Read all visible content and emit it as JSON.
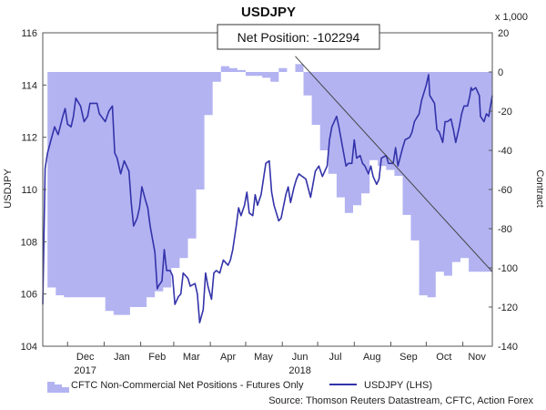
{
  "chart_data": {
    "type": "line",
    "title": "USDJPY",
    "ylabel": "USDJPY",
    "y2label": "Contract",
    "y2_units": "x 1,000",
    "ylim": [
      104,
      116
    ],
    "y2lim": [
      -140,
      20
    ],
    "y_ticks": [
      "104",
      "106",
      "108",
      "110",
      "112",
      "114",
      "116"
    ],
    "y2_ticks": [
      "-140",
      "-120",
      "-100",
      "-80",
      "-60",
      "-40",
      "-20",
      "0",
      "20"
    ],
    "x_ticks": [
      "Dec",
      "Jan",
      "Feb",
      "Mar",
      "Apr",
      "May",
      "Jun",
      "Jul",
      "Aug",
      "Sep",
      "Oct",
      "Nov"
    ],
    "x_year_labels": [
      "2017",
      "2018"
    ],
    "grid": false,
    "legend_position": "bottom",
    "annotation": "Net Position: -102294",
    "source": "Source: Thomson Reuters Datastream, CFTC, Action Forex",
    "series": [
      {
        "name": "CFTC Non-Commercial Net Positions - Futures Only",
        "type": "area",
        "axis": "right",
        "color": "#9999ee",
        "points": [
          [
            "2017-11-14",
            -110
          ],
          [
            "2017-11-21",
            -114
          ],
          [
            "2017-11-28",
            -115
          ],
          [
            "2017-12-05",
            -115
          ],
          [
            "2017-12-12",
            -115
          ],
          [
            "2017-12-19",
            -115
          ],
          [
            "2017-12-26",
            -115
          ],
          [
            "2018-01-02",
            -122
          ],
          [
            "2018-01-09",
            -124
          ],
          [
            "2018-01-16",
            -124
          ],
          [
            "2018-01-23",
            -120
          ],
          [
            "2018-01-30",
            -120
          ],
          [
            "2018-02-06",
            -115
          ],
          [
            "2018-02-13",
            -112
          ],
          [
            "2018-02-20",
            -110
          ],
          [
            "2018-02-27",
            -100
          ],
          [
            "2018-03-06",
            -95
          ],
          [
            "2018-03-13",
            -85
          ],
          [
            "2018-03-20",
            -60
          ],
          [
            "2018-03-27",
            -22
          ],
          [
            "2018-04-03",
            -5
          ],
          [
            "2018-04-10",
            3
          ],
          [
            "2018-04-17",
            2
          ],
          [
            "2018-04-24",
            1
          ],
          [
            "2018-05-01",
            -2
          ],
          [
            "2018-05-08",
            -2
          ],
          [
            "2018-05-15",
            -3
          ],
          [
            "2018-05-22",
            -5
          ],
          [
            "2018-05-29",
            2
          ],
          [
            "2018-06-05",
            0
          ],
          [
            "2018-06-12",
            4
          ],
          [
            "2018-06-19",
            -12
          ],
          [
            "2018-06-26",
            -27
          ],
          [
            "2018-07-03",
            -40
          ],
          [
            "2018-07-10",
            -52
          ],
          [
            "2018-07-17",
            -64
          ],
          [
            "2018-07-24",
            -72
          ],
          [
            "2018-07-31",
            -68
          ],
          [
            "2018-08-07",
            -62
          ],
          [
            "2018-08-14",
            -45
          ],
          [
            "2018-08-21",
            -48
          ],
          [
            "2018-08-28",
            -50
          ],
          [
            "2018-09-04",
            -53
          ],
          [
            "2018-09-11",
            -73
          ],
          [
            "2018-09-18",
            -86
          ],
          [
            "2018-09-25",
            -114
          ],
          [
            "2018-10-02",
            -115
          ],
          [
            "2018-10-09",
            -102
          ],
          [
            "2018-10-16",
            -104
          ],
          [
            "2018-10-23",
            -97
          ],
          [
            "2018-10-30",
            -95
          ],
          [
            "2018-11-06",
            -102
          ],
          [
            "2018-11-13",
            -102
          ]
        ]
      },
      {
        "name": "USDJPY (LHS)",
        "type": "line",
        "axis": "left",
        "color": "#3333aa",
        "points": [
          [
            "2017-11-10",
            105.6
          ],
          [
            "2017-11-12",
            110.8
          ],
          [
            "2017-11-14",
            111.4
          ],
          [
            "2017-11-17",
            111.9
          ],
          [
            "2017-11-20",
            112.4
          ],
          [
            "2017-11-23",
            112.1
          ],
          [
            "2017-11-27",
            112.8
          ],
          [
            "2017-11-29",
            113.1
          ],
          [
            "2017-12-01",
            112.5
          ],
          [
            "2017-12-04",
            112.4
          ],
          [
            "2017-12-06",
            112.8
          ],
          [
            "2017-12-08",
            113.5
          ],
          [
            "2017-12-12",
            113.2
          ],
          [
            "2017-12-15",
            112.6
          ],
          [
            "2017-12-18",
            112.8
          ],
          [
            "2017-12-20",
            113.3
          ],
          [
            "2017-12-26",
            113.3
          ],
          [
            "2017-12-28",
            112.9
          ],
          [
            "2018-01-02",
            112.6
          ],
          [
            "2018-01-05",
            113.0
          ],
          [
            "2018-01-08",
            113.2
          ],
          [
            "2018-01-10",
            111.4
          ],
          [
            "2018-01-12",
            111.2
          ],
          [
            "2018-01-15",
            110.6
          ],
          [
            "2018-01-18",
            111.1
          ],
          [
            "2018-01-22",
            110.7
          ],
          [
            "2018-01-24",
            109.5
          ],
          [
            "2018-01-26",
            108.6
          ],
          [
            "2018-01-29",
            108.9
          ],
          [
            "2018-01-31",
            109.3
          ],
          [
            "2018-02-02",
            110.1
          ],
          [
            "2018-02-05",
            109.6
          ],
          [
            "2018-02-07",
            109.3
          ],
          [
            "2018-02-09",
            108.6
          ],
          [
            "2018-02-13",
            107.6
          ],
          [
            "2018-02-15",
            106.2
          ],
          [
            "2018-02-16",
            106.3
          ],
          [
            "2018-02-19",
            106.5
          ],
          [
            "2018-02-21",
            107.7
          ],
          [
            "2018-02-23",
            106.9
          ],
          [
            "2018-02-26",
            106.9
          ],
          [
            "2018-02-28",
            106.7
          ],
          [
            "2018-03-02",
            105.6
          ],
          [
            "2018-03-05",
            105.9
          ],
          [
            "2018-03-07",
            106.0
          ],
          [
            "2018-03-09",
            106.8
          ],
          [
            "2018-03-13",
            106.6
          ],
          [
            "2018-03-15",
            106.3
          ],
          [
            "2018-03-19",
            106.4
          ],
          [
            "2018-03-21",
            106.0
          ],
          [
            "2018-03-23",
            104.9
          ],
          [
            "2018-03-26",
            105.4
          ],
          [
            "2018-03-28",
            106.8
          ],
          [
            "2018-03-30",
            106.3
          ],
          [
            "2018-04-02",
            105.8
          ],
          [
            "2018-04-04",
            106.8
          ],
          [
            "2018-04-06",
            106.9
          ],
          [
            "2018-04-09",
            106.8
          ],
          [
            "2018-04-12",
            107.3
          ],
          [
            "2018-04-16",
            107.1
          ],
          [
            "2018-04-18",
            107.3
          ],
          [
            "2018-04-20",
            107.7
          ],
          [
            "2018-04-23",
            108.6
          ],
          [
            "2018-04-25",
            109.3
          ],
          [
            "2018-04-27",
            109.0
          ],
          [
            "2018-04-30",
            109.4
          ],
          [
            "2018-05-02",
            109.9
          ],
          [
            "2018-05-04",
            109.1
          ],
          [
            "2018-05-07",
            109.0
          ],
          [
            "2018-05-09",
            109.8
          ],
          [
            "2018-05-11",
            109.4
          ],
          [
            "2018-05-14",
            109.8
          ],
          [
            "2018-05-16",
            110.4
          ],
          [
            "2018-05-18",
            111.0
          ],
          [
            "2018-05-21",
            111.1
          ],
          [
            "2018-05-23",
            109.9
          ],
          [
            "2018-05-25",
            109.4
          ],
          [
            "2018-05-29",
            108.8
          ],
          [
            "2018-05-31",
            108.9
          ],
          [
            "2018-06-04",
            109.8
          ],
          [
            "2018-06-06",
            110.1
          ],
          [
            "2018-06-08",
            109.5
          ],
          [
            "2018-06-11",
            110.1
          ],
          [
            "2018-06-13",
            110.4
          ],
          [
            "2018-06-15",
            110.6
          ],
          [
            "2018-06-18",
            110.5
          ],
          [
            "2018-06-21",
            110.4
          ],
          [
            "2018-06-25",
            109.7
          ],
          [
            "2018-06-27",
            110.2
          ],
          [
            "2018-06-29",
            110.7
          ],
          [
            "2018-07-02",
            110.9
          ],
          [
            "2018-07-05",
            110.5
          ],
          [
            "2018-07-09",
            110.9
          ],
          [
            "2018-07-11",
            111.9
          ],
          [
            "2018-07-13",
            112.4
          ],
          [
            "2018-07-17",
            112.8
          ],
          [
            "2018-07-19",
            112.4
          ],
          [
            "2018-07-23",
            111.4
          ],
          [
            "2018-07-25",
            110.9
          ],
          [
            "2018-07-27",
            111.0
          ],
          [
            "2018-07-30",
            111.0
          ],
          [
            "2018-08-01",
            111.9
          ],
          [
            "2018-08-03",
            111.2
          ],
          [
            "2018-08-06",
            111.3
          ],
          [
            "2018-08-08",
            111.0
          ],
          [
            "2018-08-10",
            110.9
          ],
          [
            "2018-08-13",
            110.6
          ],
          [
            "2018-08-15",
            110.9
          ],
          [
            "2018-08-17",
            110.5
          ],
          [
            "2018-08-20",
            110.2
          ],
          [
            "2018-08-22",
            110.4
          ],
          [
            "2018-08-24",
            111.2
          ],
          [
            "2018-08-28",
            111.3
          ],
          [
            "2018-08-30",
            111.0
          ],
          [
            "2018-09-03",
            111.0
          ],
          [
            "2018-09-05",
            111.6
          ],
          [
            "2018-09-07",
            110.9
          ],
          [
            "2018-09-11",
            111.6
          ],
          [
            "2018-09-13",
            111.9
          ],
          [
            "2018-09-17",
            112.0
          ],
          [
            "2018-09-19",
            112.2
          ],
          [
            "2018-09-21",
            112.6
          ],
          [
            "2018-09-25",
            112.9
          ],
          [
            "2018-09-27",
            113.4
          ],
          [
            "2018-10-01",
            114.0
          ],
          [
            "2018-10-03",
            114.4
          ],
          [
            "2018-10-04",
            113.6
          ],
          [
            "2018-10-08",
            113.3
          ],
          [
            "2018-10-10",
            112.3
          ],
          [
            "2018-10-12",
            112.2
          ],
          [
            "2018-10-15",
            111.8
          ],
          [
            "2018-10-17",
            112.6
          ],
          [
            "2018-10-19",
            112.6
          ],
          [
            "2018-10-22",
            112.7
          ],
          [
            "2018-10-24",
            112.3
          ],
          [
            "2018-10-26",
            111.8
          ],
          [
            "2018-10-29",
            112.4
          ],
          [
            "2018-10-31",
            112.9
          ],
          [
            "2018-11-02",
            113.2
          ],
          [
            "2018-11-05",
            113.2
          ],
          [
            "2018-11-07",
            113.6
          ],
          [
            "2018-11-08",
            113.9
          ],
          [
            "2018-11-09",
            113.8
          ],
          [
            "2018-11-12",
            113.9
          ],
          [
            "2018-11-13",
            113.8
          ],
          [
            "2018-11-15",
            113.6
          ],
          [
            "2018-11-16",
            112.8
          ],
          [
            "2018-11-19",
            112.6
          ],
          [
            "2018-11-21",
            112.9
          ],
          [
            "2018-11-23",
            112.8
          ],
          [
            "2018-11-26",
            113.6
          ]
        ]
      },
      {
        "name": "",
        "type": "line",
        "axis": "right",
        "color": "#444444",
        "points": [
          [
            "2018-06-12",
            8
          ],
          [
            "2018-11-26",
            -102
          ]
        ]
      }
    ]
  }
}
